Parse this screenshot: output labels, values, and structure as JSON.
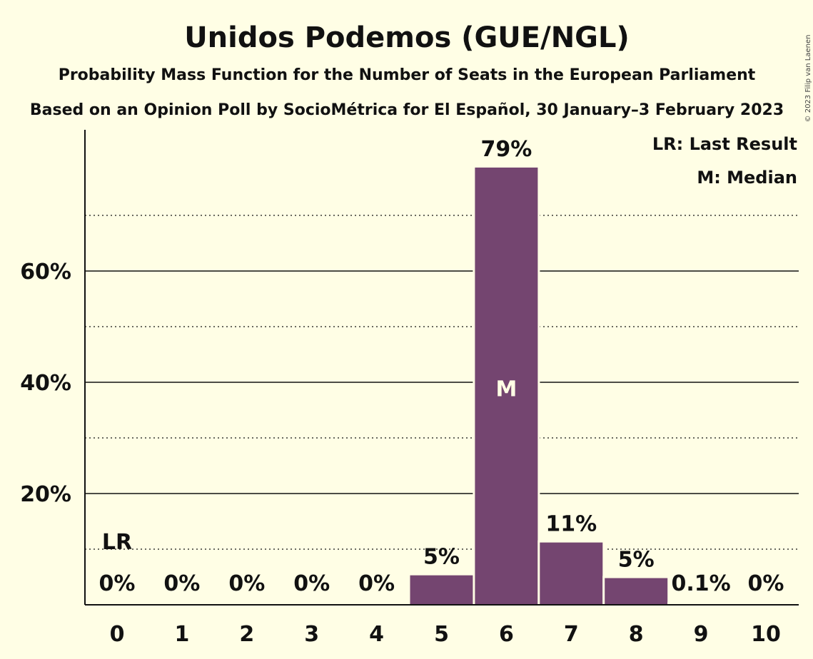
{
  "chart_data": {
    "type": "bar",
    "title": "Unidos Podemos (GUE/NGL)",
    "subtitle": "Probability Mass Function for the Number of Seats in the European Parliament",
    "subtitle2": "Based on an Opinion Poll by SocioMétrica for El Español, 30 January–3 February 2023",
    "copyright": "© 2023 Filip van Laenen",
    "categories": [
      "0",
      "1",
      "2",
      "3",
      "4",
      "5",
      "6",
      "7",
      "8",
      "9",
      "10"
    ],
    "values": [
      0,
      0,
      0,
      0,
      0,
      5.3,
      78.6,
      11.2,
      4.8,
      0.1,
      0
    ],
    "value_labels": [
      "0%",
      "0%",
      "0%",
      "0%",
      "0%",
      "5%",
      "79%",
      "11%",
      "5%",
      "0.1%",
      "0%"
    ],
    "ylim": [
      0,
      86
    ],
    "y_ticks": [
      20,
      40,
      60
    ],
    "y_tick_labels": [
      "20%",
      "40%",
      "60%"
    ],
    "y_minor_ticks": [
      10,
      30,
      50,
      70
    ],
    "last_result_category": "0",
    "last_result_marker": "LR",
    "median_category": "6",
    "median_marker": "M",
    "legend": [
      "LR: Last Result",
      "M: Median"
    ],
    "legend_position": "top-right",
    "bar_color": "#744570",
    "background_color": "#FFFEE5"
  }
}
